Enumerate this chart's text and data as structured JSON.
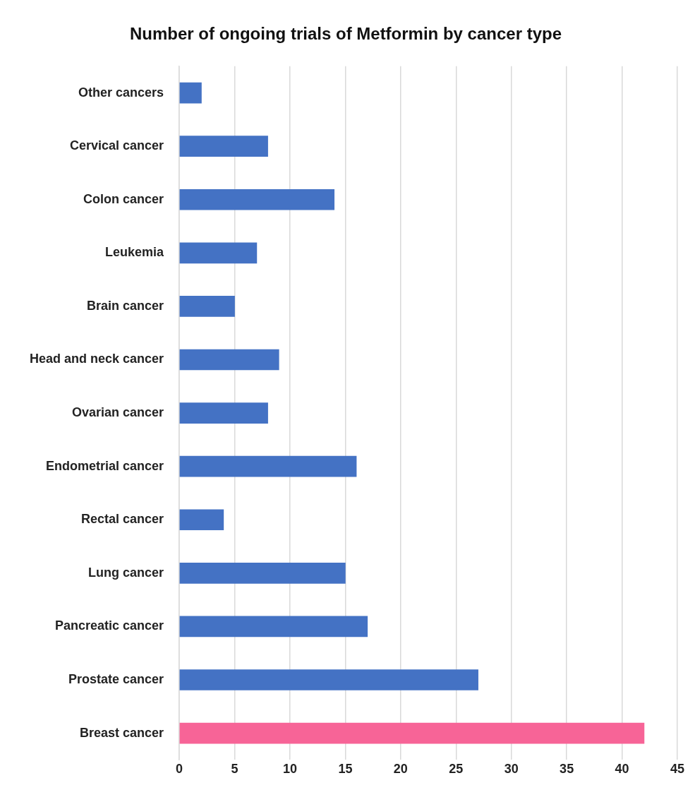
{
  "chart_data": {
    "type": "bar",
    "orientation": "horizontal",
    "title": "Number of ongoing trials of Metformin by cancer type",
    "categories": [
      "Other cancers",
      "Cervical cancer",
      "Colon cancer",
      "Leukemia",
      "Brain cancer",
      "Head and neck cancer",
      "Ovarian cancer",
      "Endometrial cancer",
      "Rectal cancer",
      "Lung cancer",
      "Pancreatic cancer",
      "Prostate cancer",
      "Breast cancer"
    ],
    "values": [
      2,
      8,
      14,
      7,
      5,
      9,
      8,
      16,
      4,
      15,
      17,
      27,
      42
    ],
    "colors": [
      "#4472c4",
      "#4472c4",
      "#4472c4",
      "#4472c4",
      "#4472c4",
      "#4472c4",
      "#4472c4",
      "#4472c4",
      "#4472c4",
      "#4472c4",
      "#4472c4",
      "#4472c4",
      "#f76497"
    ],
    "xlim": [
      0,
      45
    ],
    "xticks": [
      0,
      5,
      10,
      15,
      20,
      25,
      30,
      35,
      40,
      45
    ],
    "grid": "x",
    "legend": false
  }
}
